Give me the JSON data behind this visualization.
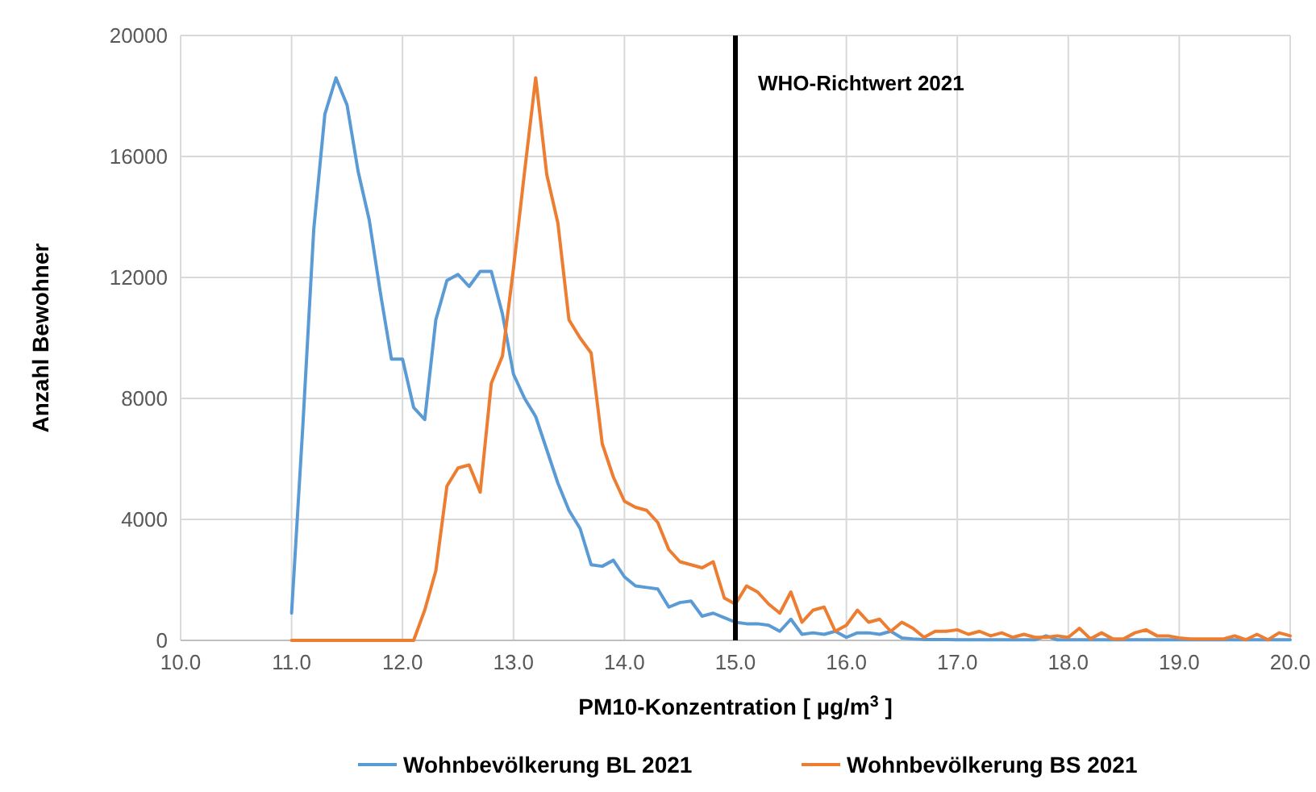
{
  "chart_data": {
    "type": "line",
    "xlabel": "PM10-Konzentration [ µg/m$^{3}$ ]",
    "ylabel": "Anzahl Bewohner",
    "x": [
      11.0,
      11.1,
      11.2,
      11.3,
      11.4,
      11.5,
      11.6,
      11.7,
      11.8,
      11.9,
      12.0,
      12.1,
      12.2,
      12.3,
      12.4,
      12.5,
      12.6,
      12.7,
      12.8,
      12.9,
      13.0,
      13.1,
      13.2,
      13.3,
      13.4,
      13.5,
      13.6,
      13.7,
      13.8,
      13.9,
      14.0,
      14.1,
      14.2,
      14.3,
      14.4,
      14.5,
      14.6,
      14.7,
      14.8,
      14.9,
      15.0,
      15.1,
      15.2,
      15.3,
      15.4,
      15.5,
      15.6,
      15.7,
      15.8,
      15.9,
      16.0,
      16.1,
      16.2,
      16.3,
      16.4,
      16.5,
      16.6,
      16.7,
      16.8,
      16.9,
      17.0,
      17.1,
      17.2,
      17.3,
      17.4,
      17.5,
      17.6,
      17.7,
      17.8,
      17.9,
      18.0,
      18.1,
      18.2,
      18.3,
      18.4,
      18.5,
      18.6,
      18.7,
      18.8,
      18.9,
      19.0,
      19.1,
      19.2,
      19.3,
      19.4,
      19.5,
      19.6,
      19.7,
      19.8,
      19.9,
      20.0
    ],
    "series": [
      {
        "name": "Wohnbevölkerung BL 2021",
        "color": "#5b9bd5",
        "values": [
          900,
          7000,
          13600,
          17400,
          18600,
          17700,
          15500,
          13900,
          11500,
          9300,
          9300,
          7700,
          7300,
          10600,
          11900,
          12100,
          11700,
          12200,
          12200,
          10800,
          8800,
          8000,
          7400,
          6300,
          5200,
          4300,
          3700,
          2500,
          2450,
          2650,
          2100,
          1800,
          1750,
          1700,
          1100,
          1250,
          1300,
          800,
          900,
          750,
          600,
          550,
          550,
          500,
          300,
          700,
          200,
          250,
          200,
          300,
          100,
          250,
          250,
          200,
          300,
          80,
          50,
          30,
          30,
          30,
          20,
          20,
          20,
          20,
          20,
          20,
          20,
          20,
          150,
          20,
          20,
          20,
          20,
          20,
          20,
          20,
          20,
          20,
          20,
          20,
          20,
          20,
          20,
          20,
          20,
          20,
          20,
          20,
          20,
          20,
          20
        ]
      },
      {
        "name": "Wohnbevölkerung BS 2021",
        "color": "#ed7d31",
        "values": [
          0,
          0,
          0,
          0,
          0,
          0,
          0,
          0,
          0,
          0,
          0,
          0,
          1000,
          2300,
          5100,
          5700,
          5800,
          4900,
          8500,
          9400,
          12300,
          15500,
          18600,
          15400,
          13800,
          10600,
          10000,
          9500,
          6500,
          5400,
          4600,
          4400,
          4300,
          3900,
          3000,
          2600,
          2500,
          2400,
          2600,
          1400,
          1200,
          1800,
          1600,
          1200,
          900,
          1600,
          600,
          1000,
          1100,
          300,
          500,
          1000,
          600,
          700,
          300,
          600,
          400,
          100,
          300,
          300,
          350,
          200,
          300,
          150,
          250,
          100,
          200,
          100,
          100,
          150,
          100,
          400,
          50,
          250,
          50,
          50,
          250,
          350,
          150,
          150,
          80,
          50,
          50,
          50,
          50,
          150,
          20,
          200,
          20,
          250,
          150
        ]
      }
    ],
    "xlim": [
      10,
      20
    ],
    "xticks": [
      {
        "value": 10,
        "label": "10.0"
      },
      {
        "value": 11,
        "label": "11.0"
      },
      {
        "value": 12,
        "label": "12.0"
      },
      {
        "value": 13,
        "label": "13.0"
      },
      {
        "value": 14,
        "label": "14.0"
      },
      {
        "value": 15,
        "label": "15.0"
      },
      {
        "value": 16,
        "label": "16.0"
      },
      {
        "value": 17,
        "label": "17.0"
      },
      {
        "value": 18,
        "label": "18.0"
      },
      {
        "value": 19,
        "label": "19.0"
      },
      {
        "value": 20,
        "label": "20.0"
      }
    ],
    "ylim": [
      0,
      20000
    ],
    "yticks": [
      0,
      4000,
      8000,
      12000,
      16000,
      20000
    ],
    "grid": true,
    "legend": "bottom",
    "marker": "none",
    "line_style": "solid",
    "ref_lines": [
      {
        "axis": "x",
        "value": 15,
        "label": "WHO-Richtwert 2021",
        "color": "#000000",
        "line_style": "solid"
      }
    ]
  }
}
